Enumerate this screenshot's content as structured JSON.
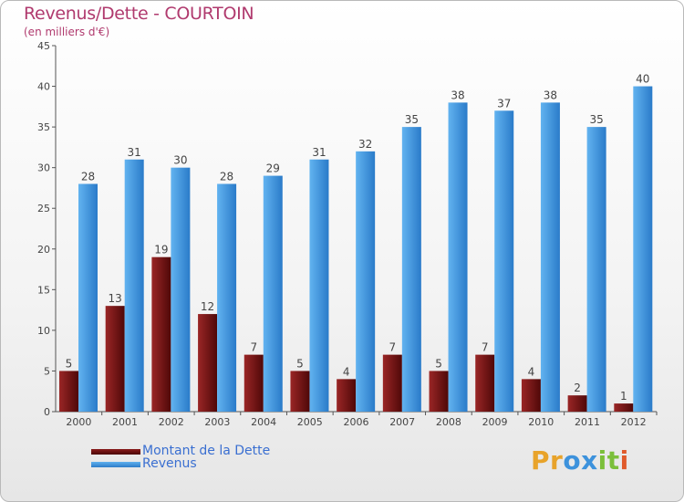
{
  "title": "Revenus/Dette - COURTOIN",
  "subtitle": "(en milliers d'€)",
  "chart_data": {
    "type": "bar",
    "categories": [
      "2000",
      "2001",
      "2002",
      "2003",
      "2004",
      "2005",
      "2006",
      "2007",
      "2008",
      "2009",
      "2010",
      "2011",
      "2012"
    ],
    "series": [
      {
        "name": "Montant de la Dette",
        "color": "#6b0f0f",
        "values": [
          5,
          13,
          19,
          12,
          7,
          5,
          4,
          7,
          5,
          7,
          4,
          2,
          1
        ]
      },
      {
        "name": "Revenus",
        "color": "#3d92dc",
        "values": [
          28,
          31,
          30,
          28,
          29,
          31,
          32,
          35,
          38,
          37,
          38,
          35,
          40
        ]
      }
    ],
    "ylim": [
      0,
      45
    ],
    "yticks": [
      0,
      5,
      10,
      15,
      20,
      25,
      30,
      35,
      40,
      45
    ],
    "grid": false,
    "legend_position": "bottom-left"
  },
  "logo": {
    "letters": [
      "P",
      "r",
      "o",
      "x",
      "i",
      "t",
      "i"
    ],
    "colors": [
      "#e8a32a",
      "#e8a32a",
      "#3d92dc",
      "#3d92dc",
      "#7bbf3a",
      "#7bbf3a",
      "#e05a2b"
    ]
  }
}
